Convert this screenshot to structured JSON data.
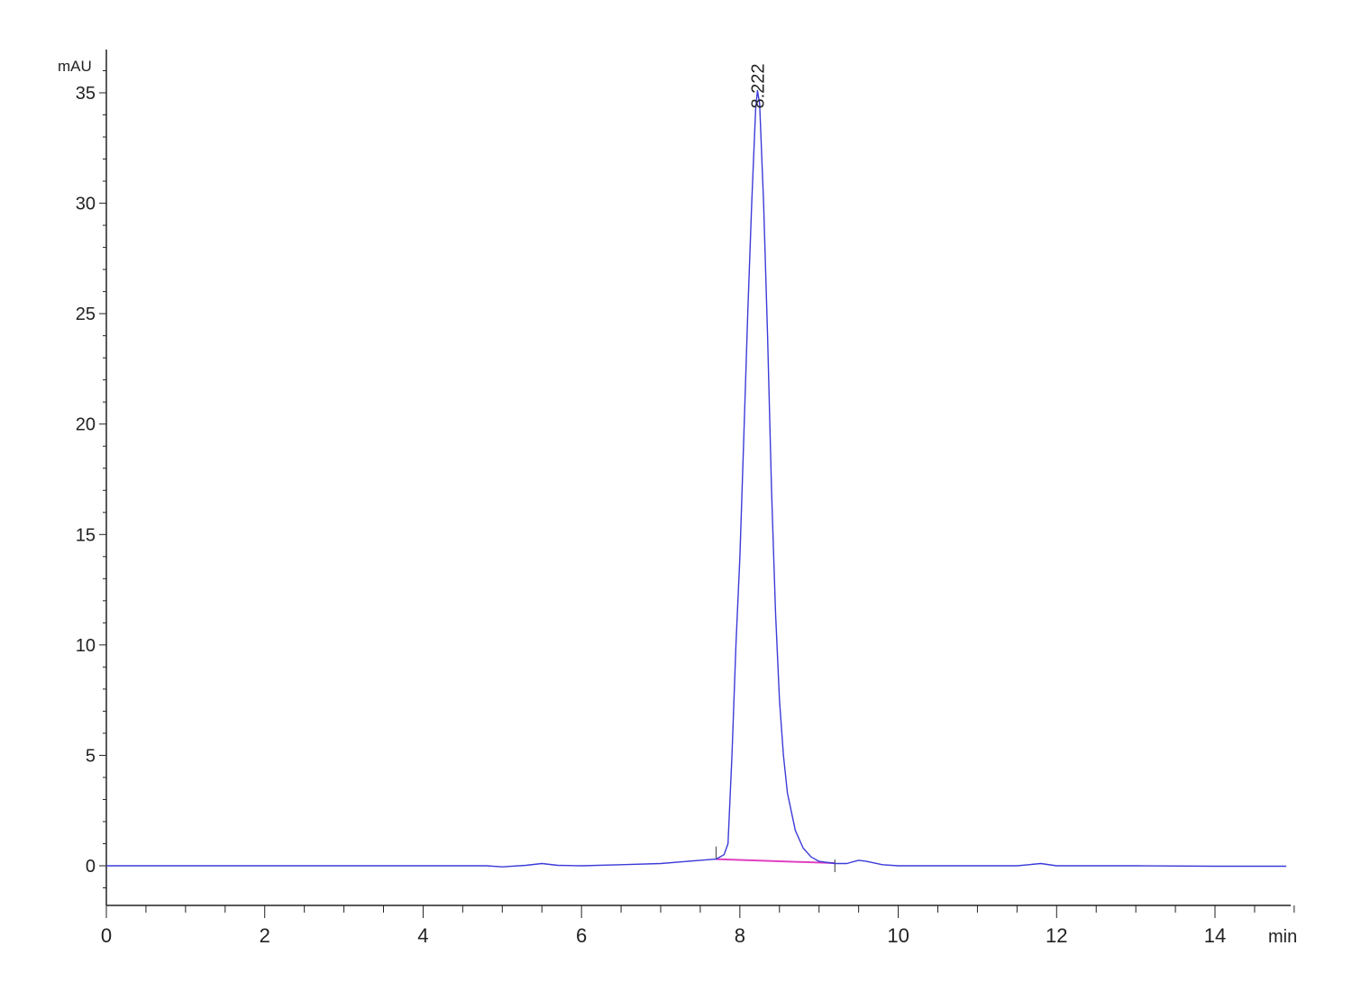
{
  "chart_data": {
    "type": "line",
    "ylabel": "mAU",
    "xlabel": "min",
    "xlim": [
      0,
      15
    ],
    "ylim": [
      -1.8,
      37
    ],
    "x_ticks": [
      0,
      2,
      4,
      6,
      8,
      10,
      12,
      14
    ],
    "y_ticks": [
      0,
      5,
      10,
      15,
      20,
      25,
      30,
      35
    ],
    "grid": false,
    "colors": {
      "trace": "#3b3bd9",
      "baseline": "#e040c0",
      "axis": "#222222"
    },
    "peaks": [
      {
        "label": "8.222",
        "rt": 8.222,
        "height": 35.1
      }
    ],
    "integration_baseline": {
      "start": [
        7.7,
        0.3
      ],
      "end": [
        9.2,
        0.12
      ]
    },
    "series": [
      {
        "x": [
          0,
          1,
          2,
          2.5,
          3,
          4,
          4.8,
          5.0,
          5.3,
          5.5,
          5.7,
          6.0,
          6.5,
          7.0,
          7.5,
          7.7,
          7.8,
          7.85,
          7.9,
          7.95,
          8.0,
          8.05,
          8.1,
          8.15,
          8.2,
          8.222,
          8.25,
          8.3,
          8.35,
          8.4,
          8.45,
          8.5,
          8.55,
          8.6,
          8.7,
          8.8,
          8.9,
          9.0,
          9.2,
          9.35,
          9.5,
          9.6,
          9.8,
          10,
          11,
          11.5,
          11.8,
          12,
          13,
          14,
          14.9
        ],
        "y": [
          0,
          0,
          0,
          0,
          0,
          0,
          0,
          -0.05,
          0.02,
          0.1,
          0.02,
          0,
          0.05,
          0.1,
          0.25,
          0.3,
          0.5,
          1,
          5,
          10,
          14,
          19.5,
          25,
          30,
          34.3,
          35.1,
          34.5,
          30,
          24,
          17,
          11.5,
          7.5,
          5,
          3.3,
          1.6,
          0.8,
          0.4,
          0.2,
          0.1,
          0.1,
          0.25,
          0.2,
          0.05,
          0,
          0,
          0,
          0.1,
          0,
          0,
          -0.02,
          -0.02
        ]
      }
    ]
  }
}
